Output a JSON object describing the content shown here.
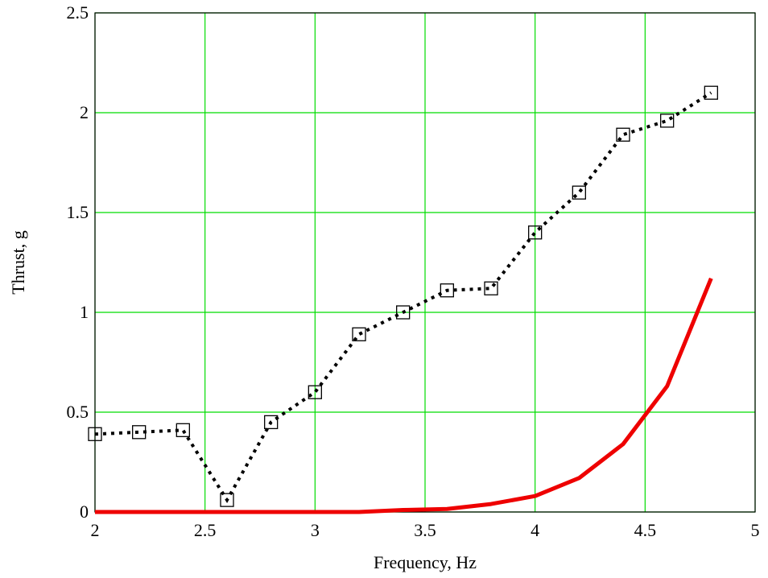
{
  "chart_data": {
    "type": "line",
    "title": "",
    "xlabel": "Frequency, Hz",
    "ylabel": "Thrust, g",
    "xlim": [
      2,
      5
    ],
    "ylim": [
      0,
      2.5
    ],
    "x_ticks": [
      2,
      2.5,
      3,
      3.5,
      4,
      4.5,
      5
    ],
    "x_tick_labels": [
      "2",
      "2.5",
      "3",
      "3.5",
      "4",
      "4.5",
      "5"
    ],
    "y_ticks": [
      0,
      0.5,
      1,
      1.5,
      2,
      2.5
    ],
    "y_tick_labels": [
      "0",
      "0.5",
      "1",
      "1.5",
      "2",
      "2.5"
    ],
    "grid": true,
    "grid_color": "#00dd00",
    "legend": "none",
    "series": [
      {
        "style": "dotted-with-square-markers",
        "color": "#000000",
        "x": [
          2.0,
          2.2,
          2.4,
          2.6,
          2.8,
          3.0,
          3.2,
          3.4,
          3.6,
          3.8,
          4.0,
          4.2,
          4.4,
          4.6,
          4.8
        ],
        "y": [
          0.39,
          0.4,
          0.41,
          0.06,
          0.45,
          0.6,
          0.89,
          1.0,
          1.11,
          1.12,
          1.4,
          1.6,
          1.89,
          1.96,
          2.1
        ]
      },
      {
        "style": "solid",
        "color": "#ee0000",
        "x": [
          2.0,
          2.2,
          2.4,
          2.6,
          2.8,
          3.0,
          3.2,
          3.4,
          3.6,
          3.8,
          4.0,
          4.2,
          4.4,
          4.6,
          4.8
        ],
        "y": [
          0.0,
          0.0,
          0.0,
          0.0,
          0.0,
          0.0,
          0.0,
          0.01,
          0.015,
          0.04,
          0.08,
          0.17,
          0.34,
          0.63,
          1.17
        ]
      }
    ]
  }
}
